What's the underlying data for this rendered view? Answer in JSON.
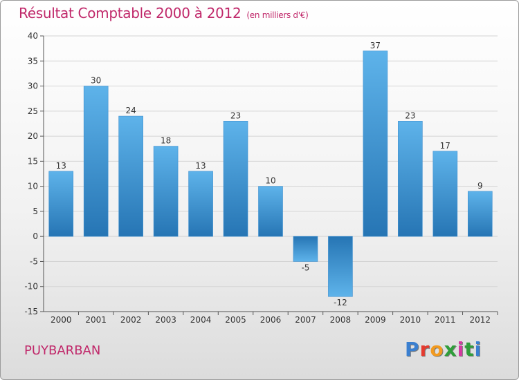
{
  "title": "Résultat Comptable 2000 à 2012",
  "unit": "(en milliers d'€)",
  "place": "PUYBARBAN",
  "logo": {
    "letters": [
      "P",
      "r",
      "o",
      "x",
      "i",
      "t",
      "i"
    ],
    "colors": [
      "#3a7fd0",
      "#e63a2e",
      "#f29a1f",
      "#2f9e3a",
      "#d33aa0",
      "#2f9e3a",
      "#3a7fd0"
    ]
  },
  "chart_data": {
    "type": "bar",
    "title": "Résultat Comptable 2000 à 2012",
    "subtitle": "(en milliers d'€)",
    "categories": [
      "2000",
      "2001",
      "2002",
      "2003",
      "2004",
      "2005",
      "2006",
      "2007",
      "2008",
      "2009",
      "2010",
      "2011",
      "2012"
    ],
    "values": [
      13,
      30,
      24,
      18,
      13,
      23,
      10,
      -5,
      -12,
      37,
      23,
      17,
      9
    ],
    "ylim": [
      -15,
      40
    ],
    "yticks": [
      -15,
      -10,
      -5,
      0,
      5,
      10,
      15,
      20,
      25,
      30,
      35,
      40
    ],
    "grid": "horizontal",
    "xlabel": "",
    "ylabel": "",
    "bar_colors": {
      "top": "#5eb3ea",
      "bottom": "#2675b4"
    }
  }
}
